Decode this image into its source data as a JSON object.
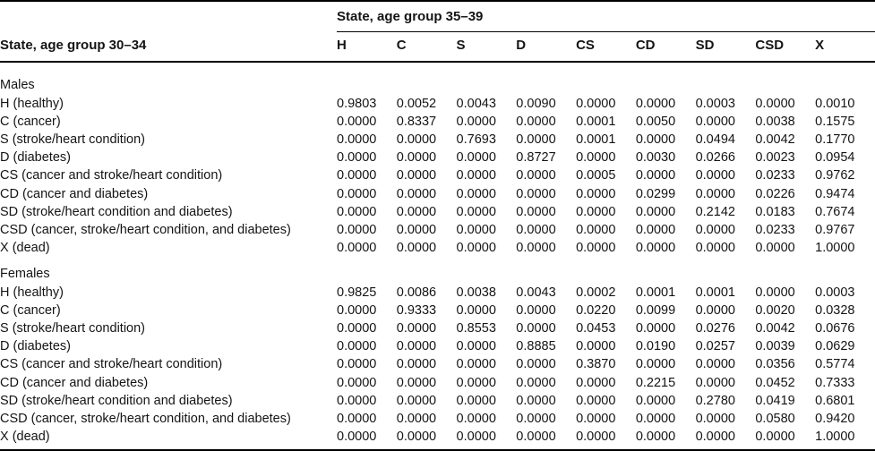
{
  "table": {
    "row_axis_title": "State, age group 30–34",
    "col_axis_title": "State, age group 35–39",
    "columns": [
      "H",
      "C",
      "S",
      "D",
      "CS",
      "CD",
      "SD",
      "CSD",
      "X"
    ],
    "sections": [
      {
        "label": "Males",
        "rows": [
          {
            "label": "H (healthy)",
            "values": [
              "0.9803",
              "0.0052",
              "0.0043",
              "0.0090",
              "0.0000",
              "0.0000",
              "0.0003",
              "0.0000",
              "0.0010"
            ]
          },
          {
            "label": "C (cancer)",
            "values": [
              "0.0000",
              "0.8337",
              "0.0000",
              "0.0000",
              "0.0001",
              "0.0050",
              "0.0000",
              "0.0038",
              "0.1575"
            ]
          },
          {
            "label": "S (stroke/heart condition)",
            "values": [
              "0.0000",
              "0.0000",
              "0.7693",
              "0.0000",
              "0.0001",
              "0.0000",
              "0.0494",
              "0.0042",
              "0.1770"
            ]
          },
          {
            "label": "D (diabetes)",
            "values": [
              "0.0000",
              "0.0000",
              "0.0000",
              "0.8727",
              "0.0000",
              "0.0030",
              "0.0266",
              "0.0023",
              "0.0954"
            ]
          },
          {
            "label": "CS (cancer and stroke/heart condition)",
            "values": [
              "0.0000",
              "0.0000",
              "0.0000",
              "0.0000",
              "0.0005",
              "0.0000",
              "0.0000",
              "0.0233",
              "0.9762"
            ]
          },
          {
            "label": "CD (cancer and diabetes)",
            "values": [
              "0.0000",
              "0.0000",
              "0.0000",
              "0.0000",
              "0.0000",
              "0.0299",
              "0.0000",
              "0.0226",
              "0.9474"
            ]
          },
          {
            "label": "SD (stroke/heart condition and diabetes)",
            "values": [
              "0.0000",
              "0.0000",
              "0.0000",
              "0.0000",
              "0.0000",
              "0.0000",
              "0.2142",
              "0.0183",
              "0.7674"
            ]
          },
          {
            "label": "CSD (cancer, stroke/heart condition, and diabetes)",
            "values": [
              "0.0000",
              "0.0000",
              "0.0000",
              "0.0000",
              "0.0000",
              "0.0000",
              "0.0000",
              "0.0233",
              "0.9767"
            ]
          },
          {
            "label": "X (dead)",
            "values": [
              "0.0000",
              "0.0000",
              "0.0000",
              "0.0000",
              "0.0000",
              "0.0000",
              "0.0000",
              "0.0000",
              "1.0000"
            ]
          }
        ]
      },
      {
        "label": "Females",
        "rows": [
          {
            "label": "H (healthy)",
            "values": [
              "0.9825",
              "0.0086",
              "0.0038",
              "0.0043",
              "0.0002",
              "0.0001",
              "0.0001",
              "0.0000",
              "0.0003"
            ]
          },
          {
            "label": "C (cancer)",
            "values": [
              "0.0000",
              "0.9333",
              "0.0000",
              "0.0000",
              "0.0220",
              "0.0099",
              "0.0000",
              "0.0020",
              "0.0328"
            ]
          },
          {
            "label": "S (stroke/heart condition)",
            "values": [
              "0.0000",
              "0.0000",
              "0.8553",
              "0.0000",
              "0.0453",
              "0.0000",
              "0.0276",
              "0.0042",
              "0.0676"
            ]
          },
          {
            "label": "D (diabetes)",
            "values": [
              "0.0000",
              "0.0000",
              "0.0000",
              "0.8885",
              "0.0000",
              "0.0190",
              "0.0257",
              "0.0039",
              "0.0629"
            ]
          },
          {
            "label": "CS (cancer and stroke/heart condition)",
            "values": [
              "0.0000",
              "0.0000",
              "0.0000",
              "0.0000",
              "0.3870",
              "0.0000",
              "0.0000",
              "0.0356",
              "0.5774"
            ]
          },
          {
            "label": "CD (cancer and diabetes)",
            "values": [
              "0.0000",
              "0.0000",
              "0.0000",
              "0.0000",
              "0.0000",
              "0.2215",
              "0.0000",
              "0.0452",
              "0.7333"
            ]
          },
          {
            "label": "SD (stroke/heart condition and diabetes)",
            "values": [
              "0.0000",
              "0.0000",
              "0.0000",
              "0.0000",
              "0.0000",
              "0.0000",
              "0.2780",
              "0.0419",
              "0.6801"
            ]
          },
          {
            "label": "CSD (cancer, stroke/heart condition, and diabetes)",
            "values": [
              "0.0000",
              "0.0000",
              "0.0000",
              "0.0000",
              "0.0000",
              "0.0000",
              "0.0000",
              "0.0580",
              "0.9420"
            ]
          },
          {
            "label": "X (dead)",
            "values": [
              "0.0000",
              "0.0000",
              "0.0000",
              "0.0000",
              "0.0000",
              "0.0000",
              "0.0000",
              "0.0000",
              "1.0000"
            ]
          }
        ]
      }
    ]
  }
}
